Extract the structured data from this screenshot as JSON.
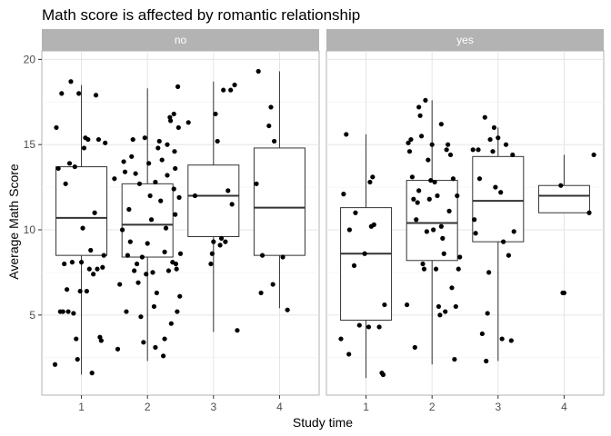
{
  "chart_data": {
    "type": "boxplot-jitter",
    "title": "Math score is affected by romantic relationship",
    "xlabel": "Study time",
    "ylabel": "Average Math Score",
    "x_categories": [
      "1",
      "2",
      "3",
      "4"
    ],
    "ylim": [
      0.3,
      20.5
    ],
    "yticks": [
      5,
      10,
      15,
      20
    ],
    "grid": true,
    "panels": [
      {
        "label": "no",
        "boxes": [
          {
            "x": "1",
            "min": 1.5,
            "q1": 8.5,
            "median": 10.7,
            "q3": 13.7,
            "max": 18.5
          },
          {
            "x": "2",
            "min": 2.3,
            "q1": 8.4,
            "median": 10.3,
            "q3": 12.7,
            "max": 18.3
          },
          {
            "x": "3",
            "min": 4.0,
            "q1": 9.6,
            "median": 12.0,
            "q3": 13.8,
            "max": 18.7
          },
          {
            "x": "4",
            "min": 5.4,
            "q1": 8.5,
            "median": 11.3,
            "q3": 14.8,
            "max": 19.3
          }
        ],
        "points": [
          [
            0.6,
            2.1
          ],
          [
            0.62,
            16.0
          ],
          [
            0.65,
            13.6
          ],
          [
            0.68,
            5.2
          ],
          [
            0.7,
            18.0
          ],
          [
            0.72,
            5.2
          ],
          [
            0.74,
            8.0
          ],
          [
            0.76,
            12.7
          ],
          [
            0.78,
            6.5
          ],
          [
            0.8,
            5.2
          ],
          [
            0.82,
            13.9
          ],
          [
            0.84,
            18.7
          ],
          [
            0.86,
            8.1
          ],
          [
            0.88,
            5.1
          ],
          [
            0.9,
            13.7
          ],
          [
            0.92,
            3.6
          ],
          [
            0.94,
            2.4
          ],
          [
            0.96,
            18.0
          ],
          [
            0.98,
            6.4
          ],
          [
            1.0,
            8.1
          ],
          [
            1.02,
            10.1
          ],
          [
            1.04,
            14.8
          ],
          [
            1.06,
            15.4
          ],
          [
            1.08,
            6.4
          ],
          [
            1.1,
            15.3
          ],
          [
            1.12,
            7.7
          ],
          [
            1.14,
            8.8
          ],
          [
            1.16,
            1.6
          ],
          [
            1.18,
            7.4
          ],
          [
            1.2,
            11.0
          ],
          [
            1.22,
            17.9
          ],
          [
            1.24,
            7.7
          ],
          [
            1.26,
            15.3
          ],
          [
            1.28,
            3.7
          ],
          [
            1.3,
            3.5
          ],
          [
            1.32,
            7.8
          ],
          [
            1.34,
            8.5
          ],
          [
            1.36,
            15.1
          ],
          [
            1.62,
            10.0
          ],
          [
            1.64,
            14.0
          ],
          [
            1.66,
            13.4
          ],
          [
            1.68,
            5.2
          ],
          [
            1.7,
            8.5
          ],
          [
            1.72,
            11.2
          ],
          [
            1.74,
            9.3
          ],
          [
            1.76,
            14.3
          ],
          [
            1.78,
            15.3
          ],
          [
            1.8,
            7.6
          ],
          [
            1.82,
            13.3
          ],
          [
            1.84,
            8.0
          ],
          [
            1.86,
            6.9
          ],
          [
            1.88,
            12.7
          ],
          [
            1.9,
            4.9
          ],
          [
            1.92,
            8.4
          ],
          [
            1.94,
            3.4
          ],
          [
            1.96,
            15.4
          ],
          [
            1.98,
            7.4
          ],
          [
            2.0,
            9.2
          ],
          [
            2.02,
            13.9
          ],
          [
            2.04,
            12.0
          ],
          [
            2.06,
            10.6
          ],
          [
            2.08,
            7.5
          ],
          [
            2.1,
            5.5
          ],
          [
            2.12,
            12.8
          ],
          [
            2.14,
            6.3
          ],
          [
            2.16,
            14.8
          ],
          [
            2.18,
            15.2
          ],
          [
            2.2,
            11.7
          ],
          [
            2.22,
            14.1
          ],
          [
            2.24,
            2.6
          ],
          [
            2.26,
            8.7
          ],
          [
            2.28,
            10.1
          ],
          [
            2.3,
            13.2
          ],
          [
            2.32,
            7.6
          ],
          [
            2.34,
            16.6
          ],
          [
            2.36,
            4.5
          ],
          [
            2.38,
            8.1
          ],
          [
            2.4,
            16.8
          ],
          [
            2.41,
            14.6
          ],
          [
            2.42,
            13.6
          ],
          [
            2.43,
            8.0
          ],
          [
            2.44,
            7.7
          ],
          [
            2.45,
            5.2
          ],
          [
            2.46,
            18.4
          ],
          [
            2.47,
            16.0
          ],
          [
            2.48,
            11.9
          ],
          [
            2.49,
            6.1
          ],
          [
            2.5,
            8.6
          ],
          [
            1.5,
            13.0
          ],
          [
            1.55,
            3.0
          ],
          [
            1.58,
            6.8
          ],
          [
            2.12,
            3.1
          ],
          [
            2.26,
            3.6
          ],
          [
            2.3,
            15.0
          ],
          [
            2.35,
            16.4
          ],
          [
            2.4,
            12.4
          ],
          [
            2.42,
            10.9
          ],
          [
            2.62,
            16.3
          ],
          [
            2.72,
            12.0
          ],
          [
            2.96,
            8.0
          ],
          [
            2.98,
            8.6
          ],
          [
            3.0,
            9.3
          ],
          [
            3.03,
            16.8
          ],
          [
            3.06,
            15.2
          ],
          [
            3.1,
            9.1
          ],
          [
            3.12,
            9.5
          ],
          [
            3.15,
            18.2
          ],
          [
            3.18,
            9.3
          ],
          [
            3.22,
            12.3
          ],
          [
            3.26,
            18.2
          ],
          [
            3.28,
            11.5
          ],
          [
            3.32,
            18.5
          ],
          [
            3.36,
            4.1
          ],
          [
            3.65,
            12.7
          ],
          [
            3.68,
            19.3
          ],
          [
            3.72,
            6.3
          ],
          [
            3.74,
            8.5
          ],
          [
            3.84,
            16.1
          ],
          [
            3.87,
            17.2
          ],
          [
            3.9,
            6.8
          ],
          [
            3.92,
            15.2
          ],
          [
            4.12,
            5.3
          ],
          [
            4.05,
            8.4
          ]
        ]
      },
      {
        "label": "yes",
        "boxes": [
          {
            "x": "1",
            "min": 1.3,
            "q1": 4.7,
            "median": 8.6,
            "q3": 11.3,
            "max": 15.6
          },
          {
            "x": "2",
            "min": 2.1,
            "q1": 8.2,
            "median": 10.4,
            "q3": 12.9,
            "max": 17.6
          },
          {
            "x": "3",
            "min": 2.3,
            "q1": 9.3,
            "median": 11.7,
            "q3": 14.3,
            "max": 16.0
          },
          {
            "x": "4",
            "min": 11.0,
            "q1": 11.0,
            "median": 12.0,
            "q3": 12.6,
            "max": 14.4
          }
        ],
        "points": [
          [
            0.62,
            3.6
          ],
          [
            0.66,
            12.1
          ],
          [
            0.7,
            15.6
          ],
          [
            0.74,
            2.7
          ],
          [
            0.75,
            10.0
          ],
          [
            0.82,
            7.9
          ],
          [
            0.84,
            11.0
          ],
          [
            0.9,
            4.4
          ],
          [
            0.98,
            8.6
          ],
          [
            1.04,
            4.3
          ],
          [
            1.06,
            12.8
          ],
          [
            1.08,
            10.2
          ],
          [
            1.1,
            13.1
          ],
          [
            1.12,
            10.3
          ],
          [
            1.2,
            4.3
          ],
          [
            1.24,
            1.6
          ],
          [
            1.26,
            1.5
          ],
          [
            1.28,
            5.6
          ],
          [
            1.62,
            5.6
          ],
          [
            1.66,
            14.6
          ],
          [
            1.68,
            15.3
          ],
          [
            1.7,
            13.1
          ],
          [
            1.72,
            11.8
          ],
          [
            1.74,
            3.1
          ],
          [
            1.76,
            10.6
          ],
          [
            1.78,
            11.6
          ],
          [
            1.8,
            12.3
          ],
          [
            1.82,
            16.7
          ],
          [
            1.84,
            15.5
          ],
          [
            1.86,
            8.0
          ],
          [
            1.88,
            7.7
          ],
          [
            1.9,
            17.6
          ],
          [
            1.92,
            9.9
          ],
          [
            1.94,
            14.1
          ],
          [
            1.96,
            11.8
          ],
          [
            1.98,
            12.9
          ],
          [
            2.0,
            15.0
          ],
          [
            2.02,
            10.0
          ],
          [
            2.04,
            12.8
          ],
          [
            2.06,
            7.7
          ],
          [
            2.08,
            12.0
          ],
          [
            2.1,
            5.5
          ],
          [
            2.12,
            5.0
          ],
          [
            2.14,
            16.2
          ],
          [
            2.16,
            9.5
          ],
          [
            2.18,
            8.6
          ],
          [
            2.2,
            5.2
          ],
          [
            2.22,
            14.7
          ],
          [
            2.24,
            15.0
          ],
          [
            2.26,
            11.1
          ],
          [
            2.28,
            14.4
          ],
          [
            2.3,
            6.6
          ],
          [
            2.32,
            13.0
          ],
          [
            2.34,
            2.4
          ],
          [
            2.36,
            5.5
          ],
          [
            2.38,
            12.0
          ],
          [
            2.4,
            7.7
          ],
          [
            2.42,
            8.4
          ],
          [
            1.64,
            15.1
          ],
          [
            1.8,
            17.2
          ],
          [
            2.14,
            10.2
          ],
          [
            2.62,
            14.7
          ],
          [
            2.64,
            10.6
          ],
          [
            2.66,
            9.8
          ],
          [
            2.7,
            14.7
          ],
          [
            2.72,
            13.0
          ],
          [
            2.76,
            3.9
          ],
          [
            2.8,
            16.6
          ],
          [
            2.84,
            5.1
          ],
          [
            2.86,
            7.5
          ],
          [
            2.88,
            15.3
          ],
          [
            2.92,
            14.6
          ],
          [
            2.94,
            16.0
          ],
          [
            2.96,
            12.5
          ],
          [
            3.0,
            15.4
          ],
          [
            3.04,
            12.2
          ],
          [
            3.06,
            3.6
          ],
          [
            3.08,
            9.3
          ],
          [
            3.12,
            15.0
          ],
          [
            3.16,
            8.5
          ],
          [
            3.2,
            3.5
          ],
          [
            3.22,
            14.4
          ],
          [
            3.24,
            9.9
          ],
          [
            2.82,
            2.3
          ],
          [
            3.98,
            6.3
          ],
          [
            4.0,
            6.3
          ],
          [
            4.38,
            11.0
          ],
          [
            4.45,
            14.4
          ],
          [
            3.95,
            12.6
          ]
        ]
      }
    ]
  }
}
